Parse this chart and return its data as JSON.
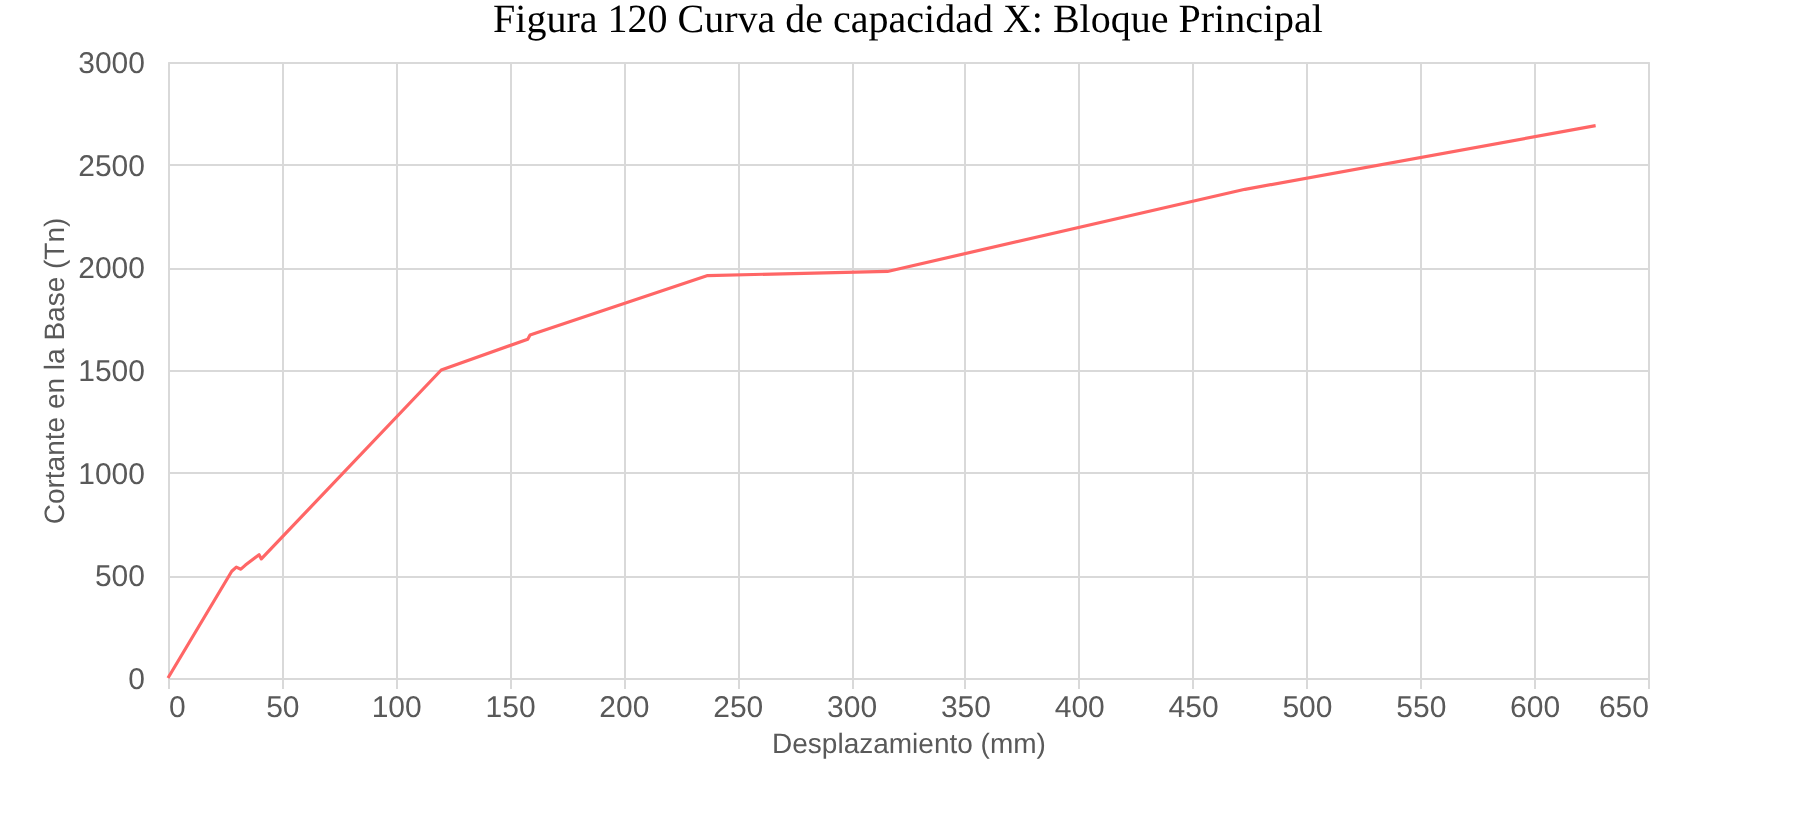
{
  "chart_data": {
    "type": "line",
    "title": "Figura 120 Curva de capacidad X: Bloque Principal",
    "xlabel": "Desplazamiento (mm)",
    "ylabel": "Cortante en la Base (Tn)",
    "x": [
      0,
      28,
      30,
      32,
      34,
      40,
      41,
      120,
      158,
      159,
      237,
      316,
      473,
      627
    ],
    "series": [
      {
        "color": "#ff6666",
        "values": [
          0,
          520,
          540,
          530,
          550,
          600,
          580,
          1500,
          1650,
          1670,
          1960,
          1980,
          2380,
          2690
        ]
      }
    ],
    "xlim": [
      0,
      650
    ],
    "xticks": [
      0,
      50,
      100,
      150,
      200,
      250,
      300,
      350,
      400,
      450,
      500,
      550,
      600,
      650
    ],
    "ylim": [
      0,
      3000
    ],
    "yticks": [
      0,
      500,
      1000,
      1500,
      2000,
      2500,
      3000
    ],
    "grid": true,
    "marker": "none",
    "line_style": "solid"
  }
}
